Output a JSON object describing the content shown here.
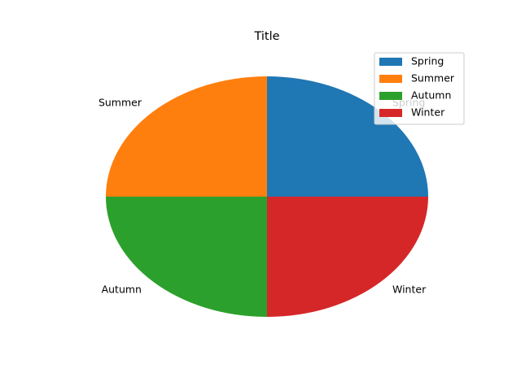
{
  "chart_data": {
    "type": "pie",
    "title": "Title",
    "labels": [
      "Spring",
      "Summer",
      "Autumn",
      "Winter"
    ],
    "values": [
      25,
      25,
      25,
      25
    ],
    "colors": [
      "#1f77b4",
      "#ff7f0e",
      "#2ca02c",
      "#d62728"
    ],
    "start_angle_deg": 0,
    "direction": "counterclockwise",
    "legend": {
      "placement": "top-right",
      "entries": [
        "Spring",
        "Summer",
        "Autumn",
        "Winter"
      ]
    }
  }
}
